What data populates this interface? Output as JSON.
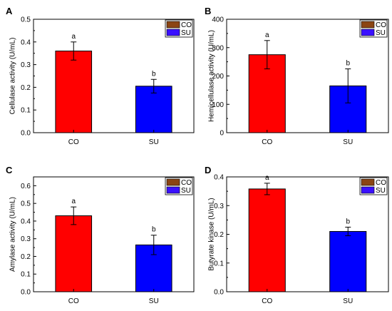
{
  "colors": {
    "co": "#ff0000",
    "su": "#0000ff",
    "legend_co": "#8b4513",
    "legend_su": "#3a10ff",
    "axis": "#000000"
  },
  "chart_data": [
    {
      "panel": "A",
      "type": "bar",
      "categories": [
        "CO",
        "SU"
      ],
      "values": [
        0.36,
        0.205
      ],
      "errors": [
        0.04,
        0.03
      ],
      "significance": [
        "a",
        "b"
      ],
      "ylabel": "Cellulase activity (U/mL)",
      "ylim": [
        0,
        0.5
      ],
      "yticks": [
        "0.0",
        "0.1",
        "0.2",
        "0.3",
        "0.4",
        "0.5"
      ],
      "legend": [
        "CO",
        "SU"
      ],
      "legend_position": "top-right"
    },
    {
      "panel": "B",
      "type": "bar",
      "categories": [
        "CO",
        "SU"
      ],
      "values": [
        275,
        165
      ],
      "errors": [
        50,
        60
      ],
      "significance": [
        "a",
        "b"
      ],
      "ylabel": "Hemicellulase activity (U/mL)",
      "ylim": [
        0,
        400
      ],
      "yticks": [
        "0",
        "100",
        "200",
        "300",
        "400"
      ],
      "legend": [
        "CO",
        "SU"
      ],
      "legend_position": "top-right"
    },
    {
      "panel": "C",
      "type": "bar",
      "categories": [
        "CO",
        "SU"
      ],
      "values": [
        0.43,
        0.265
      ],
      "errors": [
        0.05,
        0.055
      ],
      "significance": [
        "a",
        "b"
      ],
      "ylabel": "Amylase activity (U/mL)",
      "ylim": [
        0,
        0.65
      ],
      "yticks": [
        "0.0",
        "0.1",
        "0.2",
        "0.3",
        "0.4",
        "0.5",
        "0.6"
      ],
      "legend": [
        "CO",
        "SU"
      ],
      "legend_position": "top-right"
    },
    {
      "panel": "D",
      "type": "bar",
      "categories": [
        "CO",
        "SU"
      ],
      "values": [
        0.358,
        0.21
      ],
      "errors": [
        0.02,
        0.015
      ],
      "significance": [
        "a",
        "b"
      ],
      "ylabel": "Butyrate kinase (U/mL)",
      "ylim": [
        0,
        0.4
      ],
      "yticks": [
        "0.0",
        "0.1",
        "0.2",
        "0.3",
        "0.4"
      ],
      "legend": [
        "CO",
        "SU"
      ],
      "legend_position": "top-right"
    }
  ]
}
